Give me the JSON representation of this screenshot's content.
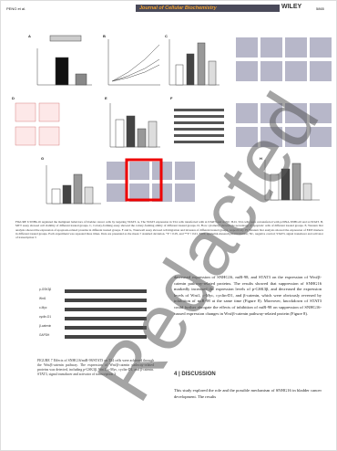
{
  "header": {
    "authors": "PENG et al.",
    "journal": "Journal of Cellular Biochemistry",
    "publisher": "WILEY",
    "page": "5865"
  },
  "figure6": {
    "panels": [
      "A",
      "B",
      "C",
      "D",
      "E",
      "F",
      "G",
      "H"
    ],
    "caption": "FIGURE 6 SNHG16 regulated the malignant behaviors of bladder cancer cells by targeting STAT3. A, The STAT3 expression in T24 cells transfected with si-STAT3 and si-NC; B-D, T24 cells were cotransfected with pcDNA-SNHG16 and si-STAT3. B, MTT assay showed cell viability of different treated groups. C, Colony-forming assay showed the colony-forming ability of different treated groups. D, Flow cytometry showed the percentage of apoptotic cells of different treated groups. E, Western blot analysis showed the expression of apoptosis-related proteins in different treated groups. F and G, Transwell assay showed cell migration and invasion of different treated groups, respectively. H, Western blot analysis showed the expression of EMT markers in different treated groups. Each experiment was repeated three times. Data are presented as the mean ± standard deviation. *P < 0.05, and **P < 0.01. EMT, epithelial-mesenchymal transition; NC, negative control; STAT3, signal transducer and activator of transcription 3"
  },
  "figure7": {
    "blot_labels": [
      "p-GSK3β",
      "Wnt1",
      "c-Myc",
      "cyclin-D1",
      "β-catenin",
      "GAPDH"
    ],
    "caption": "FIGURE 7 Effects of SNHG16/miR-98/STAT3 on T24 cells were achieved through the Wnt/β-catenin pathway. The expression of Wnt/β-catenin pathway-related proteins was detected, including p-GSK3β, Wnt1, c-Myc, cyclin-D1, and β-catenin. STAT3, signal transducer and activator of transcription 3"
  },
  "right_text": "decreased expression of SNHG16, miR-98, and STAT3 on the expression of Wnt/β-catenin pathway-related proteins. The results showed that suppression of SNHG16 markedly increased the expression levels of p-GSK3β, and decreased the expression levels of Wnt1, c-Myc, cyclin-D1, and β-catenin, which were obviously reversed by inhibition of miR-98 at the same time (Figure 8). Moreover, knockdown of STAT3 could further abrogate the effects of inhibition of miR-98 on suppression of SNHG16-caused expression changes in Wnt/β-catenin pathway-related protein (Figure 8).",
  "discussion": {
    "heading": "4 | DISCUSSION",
    "text": "This study explored the role and the possible mechanism of SNHG16 in bladder cancer development. The results"
  },
  "watermark": "Redacted"
}
